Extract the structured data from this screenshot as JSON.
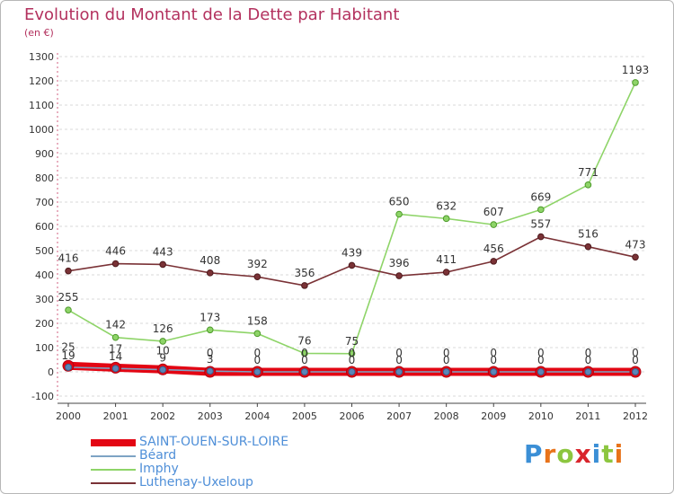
{
  "title": "Evolution du Montant de la Dette par Habitant",
  "unit": "(en €)",
  "logo": "Proxiti",
  "logo_colors": [
    "#3b8fd6",
    "#e8731a",
    "#8cc63f",
    "#d9252c",
    "#3b8fd6",
    "#8cc63f",
    "#e8731a"
  ],
  "colors": {
    "title": "#b3315e",
    "axis": "#444444",
    "grid": "#d8d8d8",
    "legend_text": "#4f8fd8"
  },
  "legend": [
    {
      "label": "SAINT-OUEN-SUR-LOIRE",
      "color": "#e30613",
      "thick": true
    },
    {
      "label": "Béard",
      "color": "#7ea3c4",
      "thick": false
    },
    {
      "label": "Imphy",
      "color": "#8ed468",
      "thick": false
    },
    {
      "label": "Luthenay-Uxeloup",
      "color": "#7a3236",
      "thick": false
    }
  ],
  "chart_data": {
    "type": "line",
    "title": "Evolution du Montant de la Dette par Habitant",
    "ylabel": "(en €)",
    "xlabel": "",
    "x": [
      "2000",
      "2001",
      "2002",
      "2003",
      "2004",
      "2005",
      "2006",
      "2007",
      "2008",
      "2009",
      "2010",
      "2011",
      "2012"
    ],
    "ylim": [
      -100,
      1300
    ],
    "yticks": [
      -100,
      0,
      100,
      200,
      300,
      400,
      500,
      600,
      700,
      800,
      900,
      1000,
      1100,
      1200,
      1300
    ],
    "grid": "horizontal",
    "legend_position": "bottom-left",
    "series": [
      {
        "name": "SAINT-OUEN-SUR-LOIRE",
        "color": "#e30613",
        "values": [
          25,
          17,
          10,
          0,
          0,
          0,
          0,
          0,
          0,
          0,
          0,
          0,
          0
        ],
        "labels": [
          "25",
          "17",
          "10",
          "0",
          "0",
          "0",
          "0",
          "0",
          "0",
          "0",
          "0",
          "0",
          "0"
        ]
      },
      {
        "name": "Béard",
        "color": "#7ea3c4",
        "values": [
          19,
          14,
          9,
          3,
          0,
          0,
          0,
          0,
          0,
          0,
          0,
          0,
          0
        ],
        "labels": [
          "19",
          "14",
          "9",
          "3",
          "0",
          "0",
          "0",
          "0",
          "0",
          "0",
          "0",
          "0",
          "0"
        ]
      },
      {
        "name": "Imphy",
        "color": "#8ed468",
        "values": [
          255,
          142,
          126,
          173,
          158,
          76,
          75,
          650,
          632,
          607,
          669,
          771,
          1193
        ],
        "labels": [
          "255",
          "142",
          "126",
          "173",
          "158",
          "76",
          "75",
          "650",
          "632",
          "607",
          "669",
          "771",
          "1193"
        ]
      },
      {
        "name": "Luthenay-Uxeloup",
        "color": "#7a3236",
        "values": [
          416,
          446,
          443,
          408,
          392,
          356,
          439,
          396,
          411,
          456,
          557,
          516,
          473
        ],
        "labels": [
          "416",
          "446",
          "443",
          "408",
          "392",
          "356",
          "439",
          "396",
          "411",
          "456",
          "557",
          "516",
          "473"
        ]
      }
    ]
  }
}
